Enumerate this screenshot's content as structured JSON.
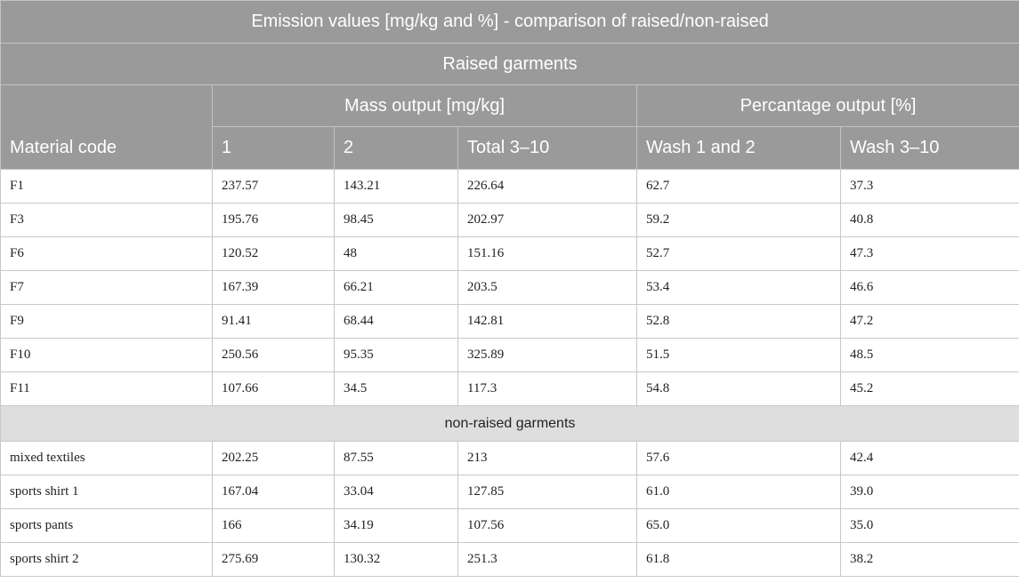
{
  "table": {
    "title": "Emission values [mg/kg and %] - comparison of raised/non-raised",
    "group_raised": "Raised garments",
    "group_non_raised": "non-raised garments",
    "header_mass": "Mass output [mg/kg]",
    "header_percent": "Percantage output [%]",
    "columns": [
      "Material code",
      "1",
      "2",
      "Total 3–10",
      "Wash 1 and 2",
      "Wash 3–10"
    ],
    "raised_rows": [
      [
        "F1",
        "237.57",
        "143.21",
        "226.64",
        "62.7",
        "37.3"
      ],
      [
        "F3",
        "195.76",
        "98.45",
        "202.97",
        "59.2",
        "40.8"
      ],
      [
        "F6",
        "120.52",
        "48",
        "151.16",
        "52.7",
        "47.3"
      ],
      [
        "F7",
        "167.39",
        "66.21",
        "203.5",
        "53.4",
        "46.6"
      ],
      [
        "F9",
        "91.41",
        "68.44",
        "142.81",
        "52.8",
        "47.2"
      ],
      [
        "F10",
        "250.56",
        "95.35",
        "325.89",
        "51.5",
        "48.5"
      ],
      [
        "F11",
        "107.66",
        "34.5",
        "117.3",
        "54.8",
        "45.2"
      ]
    ],
    "non_raised_rows": [
      [
        "mixed textiles",
        "202.25",
        "87.55",
        "213",
        "57.6",
        "42.4"
      ],
      [
        "sports shirt 1",
        "167.04",
        "33.04",
        "127.85",
        "61.0",
        "39.0"
      ],
      [
        "sports pants",
        "166",
        "34.19",
        "107.56",
        "65.0",
        "35.0"
      ],
      [
        "sports shirt 2",
        "275.69",
        "130.32",
        "251.3",
        "61.8",
        "38.2"
      ]
    ]
  }
}
